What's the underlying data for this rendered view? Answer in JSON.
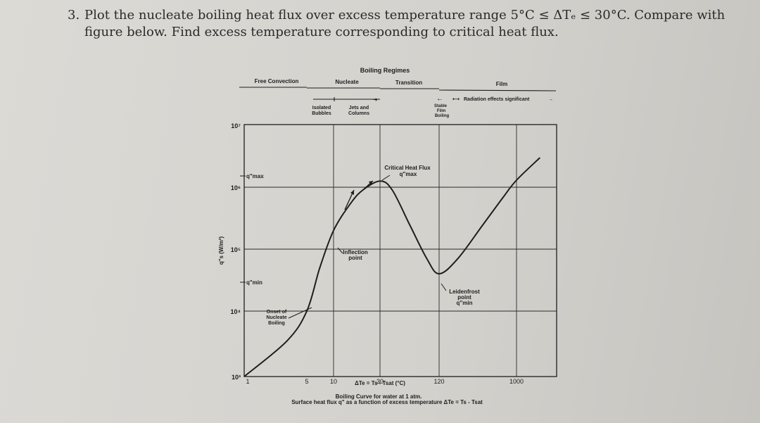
{
  "problem": {
    "number": "3.",
    "line1": "Plot the nucleate boiling heat flux over excess temperature range 5°C ≤ ΔTₑ ≤ 30°C. Compare with",
    "line2": "figure below. Find excess temperature corresponding to critical heat flux."
  },
  "figure": {
    "regimes_title": "Boiling Regimes",
    "regimes": [
      "Free Convection",
      "Nucleate",
      "Transition",
      "Film"
    ],
    "sub_regimes": {
      "isolated_bubbles": [
        "Isolated",
        "Bubbles"
      ],
      "jets_columns": [
        "Jets and",
        "Columns"
      ],
      "stable_film": [
        "Stable",
        "Film",
        "Boiling"
      ],
      "radiation": "Radiation effects significant"
    },
    "y_axis_label": "q\"s (W/m²)",
    "y_ticks": [
      "10⁷",
      "10⁶",
      "10⁵",
      "10⁴",
      "10³"
    ],
    "x_ticks": [
      "1",
      "5",
      "10",
      "30",
      "120",
      "1000"
    ],
    "x_axis_label": "ΔTe = Ts - Tsat (°C)",
    "annotations": {
      "qmax_left": "q\"max",
      "qmin_left": "q\"min",
      "critical_heat_flux": [
        "Critical Heat Flux",
        "q\"max"
      ],
      "inflection_point": [
        "Inflection",
        "point"
      ],
      "leidenfrost": [
        "Leidenfrost",
        "point",
        "q\"min"
      ],
      "onset": [
        "Onset of",
        "Nucleate",
        "Boiling"
      ]
    },
    "caption_line1": "Boiling Curve for water at 1 atm.",
    "caption_line2": "Surface heat flux q\" as a function of excess temperature ΔTe = Ts - Tsat"
  },
  "chart_data": {
    "type": "line",
    "title": "Boiling Curve for water at 1 atm.",
    "xlabel": "ΔTe = Ts - Tsat (°C)",
    "ylabel": "q\"s (W/m²)",
    "x_scale": "log",
    "y_scale": "log",
    "xlim": [
      1,
      2000
    ],
    "ylim": [
      1000,
      10000000
    ],
    "x_tick_labels": [
      "1",
      "5",
      "10",
      "30",
      "120",
      "1000"
    ],
    "y_tick_labels": [
      "10³",
      "10⁴",
      "10⁵",
      "10⁶",
      "10⁷"
    ],
    "grid": true,
    "series": [
      {
        "x": [
          1,
          3,
          5,
          7,
          10,
          15,
          20,
          30,
          40,
          60,
          90,
          120,
          200,
          400,
          700,
          1000,
          1500
        ],
        "y": [
          1000,
          3500,
          10000,
          50000,
          200000,
          550000,
          900000,
          1260000,
          900000,
          250000,
          70000,
          40000,
          70000,
          250000,
          700000,
          1300000,
          3000000
        ]
      }
    ]
  }
}
